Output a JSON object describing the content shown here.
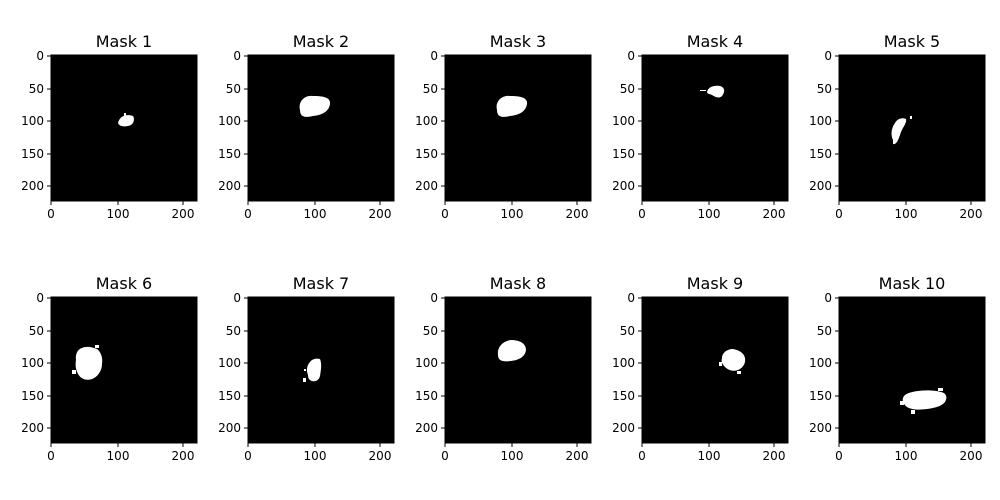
{
  "figure": {
    "background": "#ffffff",
    "mask_background": "#000000",
    "mask_foreground": "#ffffff"
  },
  "panels": [
    {
      "title": "Mask 1"
    },
    {
      "title": "Mask 2"
    },
    {
      "title": "Mask 3"
    },
    {
      "title": "Mask 4"
    },
    {
      "title": "Mask 5"
    },
    {
      "title": "Mask 6"
    },
    {
      "title": "Mask 7"
    },
    {
      "title": "Mask 8"
    },
    {
      "title": "Mask 9"
    },
    {
      "title": "Mask 10"
    }
  ],
  "axes": {
    "x_ticks": [
      "0",
      "100",
      "200"
    ],
    "y_ticks": [
      "0",
      "50",
      "100",
      "150",
      "200"
    ]
  }
}
